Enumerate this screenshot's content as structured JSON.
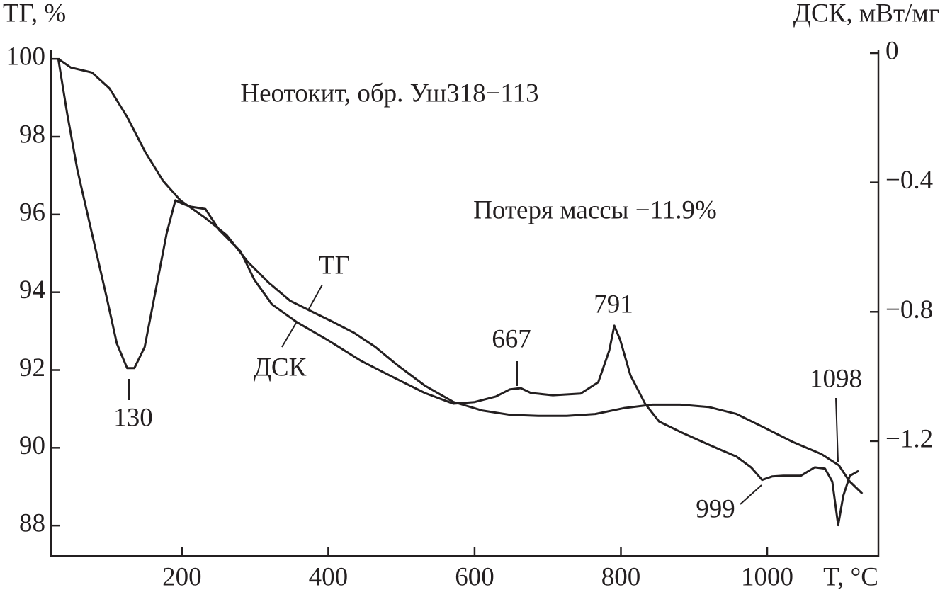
{
  "chart_data": {
    "type": "line",
    "title": "Неотокит, обр. Уш318−113",
    "subtitle": "Потеря массы −11.9%",
    "x_label": "T, °C",
    "y_label": "ТГ, %",
    "y2_label": "ДСК, мВт/мг",
    "xlim": [
      21,
      1152
    ],
    "xticks": [
      200,
      400,
      600,
      800,
      1000
    ],
    "ylim": [
      87.22,
      100.24
    ],
    "yticks": [
      88,
      90,
      92,
      94,
      96,
      98,
      100
    ],
    "y2lim": [
      -1.555,
      0.011
    ],
    "y2ticks": [
      {
        "value": 0,
        "label": "0"
      },
      {
        "value": -0.4,
        "label": "−0.4"
      },
      {
        "value": -0.8,
        "label": "−0.8"
      },
      {
        "value": -1.2,
        "label": "−1.2"
      }
    ],
    "grid": false,
    "annotations": [
      "130",
      "667",
      "791",
      "999",
      "1098"
    ],
    "series": [
      {
        "name": "ТГ",
        "color": "#231f20",
        "x": [
          31,
          48,
          77,
          101,
          125,
          150,
          174,
          198,
          232,
          261,
          290,
          319,
          348,
          377,
          406,
          435,
          464,
          493,
          532,
          571,
          610,
          648,
          687,
          726,
          765,
          804,
          843,
          881,
          920,
          958,
          997,
          1035,
          1074,
          1098,
          1112,
          1130
        ],
        "values": [
          100.0,
          99.78,
          99.65,
          99.24,
          98.51,
          97.6,
          96.87,
          96.36,
          95.91,
          95.47,
          94.78,
          94.24,
          93.78,
          93.51,
          93.24,
          92.96,
          92.6,
          92.15,
          91.6,
          91.18,
          90.96,
          90.85,
          90.82,
          90.82,
          90.87,
          91.02,
          91.11,
          91.11,
          91.05,
          90.87,
          90.51,
          90.15,
          89.84,
          89.55,
          89.15,
          88.82
        ]
      },
      {
        "name": "ДСК",
        "color": "#231f20",
        "axis": "y2",
        "x": [
          31,
          43,
          57,
          77,
          97,
          111,
          125,
          135,
          149,
          164,
          179,
          191,
          201,
          212,
          232,
          251,
          280,
          299,
          323,
          357,
          399,
          445,
          493,
          532,
          571,
          600,
          629,
          648,
          663,
          677,
          707,
          745,
          769,
          784,
          791,
          799,
          813,
          833,
          852,
          881,
          920,
          958,
          978,
          993,
          1007,
          1022,
          1046,
          1065,
          1079,
          1089,
          1097,
          1104,
          1113,
          1125
        ],
        "values": [
          -0.018,
          -0.186,
          -0.361,
          -0.558,
          -0.755,
          -0.898,
          -0.974,
          -0.974,
          -0.909,
          -0.734,
          -0.558,
          -0.455,
          -0.466,
          -0.475,
          -0.482,
          -0.547,
          -0.613,
          -0.701,
          -0.777,
          -0.832,
          -0.887,
          -0.952,
          -1.007,
          -1.051,
          -1.084,
          -1.079,
          -1.062,
          -1.04,
          -1.036,
          -1.051,
          -1.058,
          -1.053,
          -1.018,
          -0.92,
          -0.843,
          -0.887,
          -0.996,
          -1.084,
          -1.139,
          -1.171,
          -1.211,
          -1.248,
          -1.281,
          -1.32,
          -1.309,
          -1.307,
          -1.307,
          -1.281,
          -1.285,
          -1.325,
          -1.46,
          -1.369,
          -1.307,
          -1.292
        ]
      }
    ]
  }
}
